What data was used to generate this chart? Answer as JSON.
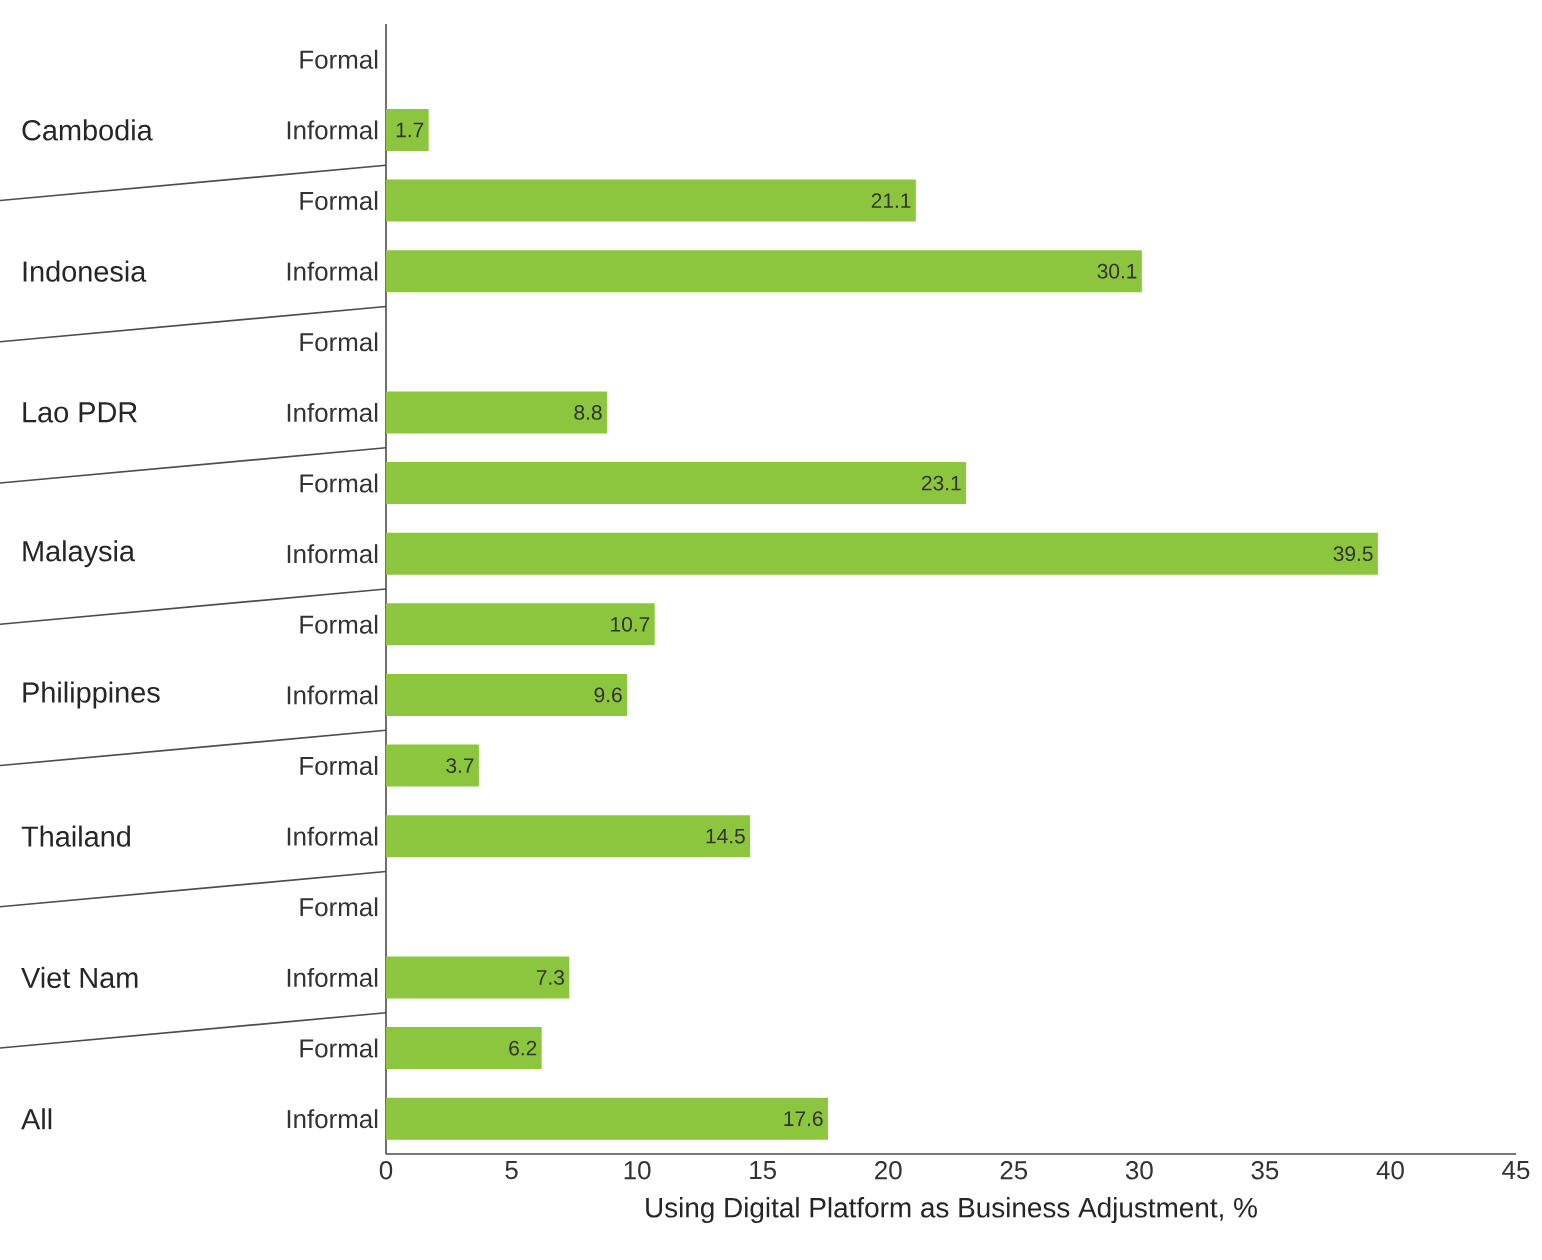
{
  "chart_data": {
    "type": "bar",
    "orientation": "horizontal",
    "xlabel": "Using Digital Platform as Business Adjustment, %",
    "categories": [
      "Formal",
      "Informal",
      "Formal",
      "Informal",
      "Formal",
      "Informal",
      "Formal",
      "Informal",
      "Formal",
      "Informal",
      "Formal",
      "Informal",
      "Formal",
      "Informal",
      "Formal",
      "Informal"
    ],
    "annotations": [
      "Cambodia",
      "Indonesia",
      "Lao PDR",
      "Malaysia",
      "Philippines",
      "Thailand",
      "Viet Nam",
      "All"
    ],
    "values": [
      null,
      1.7,
      21.1,
      30.1,
      null,
      8.8,
      23.1,
      39.5,
      10.7,
      9.6,
      3.7,
      14.5,
      null,
      7.3,
      6.2,
      17.6
    ],
    "color": "#8cc63f",
    "xlim": [
      0,
      45
    ],
    "xticks": [
      0,
      5,
      10,
      15,
      20,
      25,
      30,
      35,
      40,
      45
    ],
    "data_labels": true,
    "grid": false
  }
}
